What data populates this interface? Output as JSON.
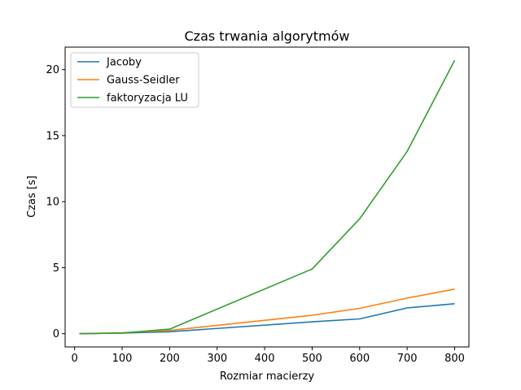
{
  "chart_data": {
    "type": "line",
    "title": "Czas trwania algorytmów",
    "xlabel": "Rozmiar macierzy",
    "ylabel": "Czas [s]",
    "xlim": [
      -20,
      830
    ],
    "ylim": [
      -1,
      21.7
    ],
    "xticks": [
      0,
      100,
      200,
      300,
      400,
      500,
      600,
      700,
      800
    ],
    "yticks": [
      0,
      5,
      10,
      15,
      20
    ],
    "x": [
      10,
      100,
      200,
      500,
      600,
      700,
      800
    ],
    "series": [
      {
        "name": "Jacoby",
        "color": "#1f77b4",
        "values": [
          0.0,
          0.05,
          0.15,
          0.9,
          1.12,
          1.95,
          2.27
        ]
      },
      {
        "name": "Gauss-Seidler",
        "color": "#ff7f0e",
        "values": [
          0.0,
          0.07,
          0.25,
          1.4,
          1.92,
          2.7,
          3.38
        ]
      },
      {
        "name": "faktoryzacja LU",
        "color": "#2ca02c",
        "values": [
          0.0,
          0.05,
          0.35,
          4.9,
          8.7,
          13.8,
          20.7
        ]
      }
    ],
    "legend_position": "top-left",
    "grid": false
  }
}
